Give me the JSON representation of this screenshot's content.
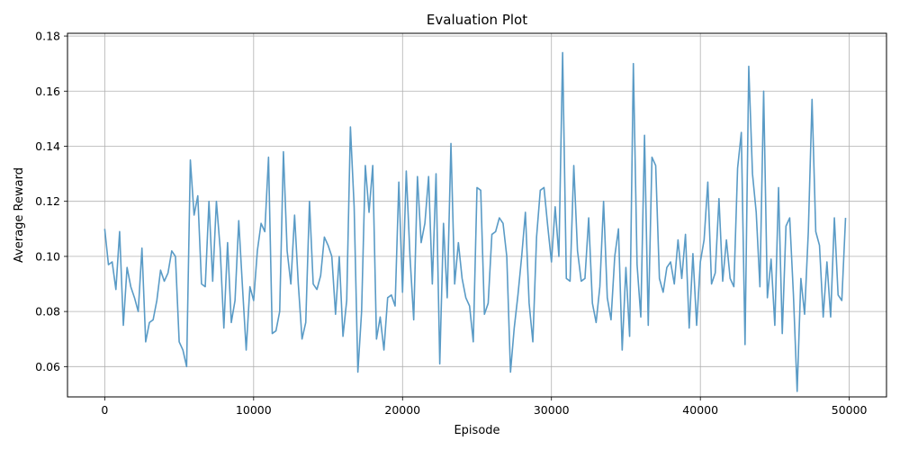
{
  "chart_data": {
    "type": "line",
    "title": "Evaluation Plot",
    "xlabel": "Episode",
    "ylabel": "Average Reward",
    "xlim": [
      -2500,
      52500
    ],
    "ylim": [
      0.049,
      0.181
    ],
    "xticks": [
      0,
      10000,
      20000,
      30000,
      40000,
      50000
    ],
    "xtick_labels": [
      "0",
      "10000",
      "20000",
      "30000",
      "40000",
      "50000"
    ],
    "yticks": [
      0.06,
      0.08,
      0.1,
      0.12,
      0.14,
      0.16,
      0.18
    ],
    "ytick_labels": [
      "0.06",
      "0.08",
      "0.10",
      "0.12",
      "0.14",
      "0.16",
      "0.18"
    ],
    "grid": true,
    "line_color": "#5a9bc6",
    "series": [
      {
        "x_start": 0,
        "x_step": 250,
        "values": [
          0.11,
          0.097,
          0.098,
          0.088,
          0.109,
          0.075,
          0.096,
          0.089,
          0.085,
          0.08,
          0.103,
          0.069,
          0.076,
          0.077,
          0.084,
          0.095,
          0.091,
          0.094,
          0.102,
          0.1,
          0.069,
          0.066,
          0.06,
          0.135,
          0.115,
          0.122,
          0.09,
          0.089,
          0.12,
          0.091,
          0.12,
          0.103,
          0.074,
          0.105,
          0.076,
          0.084,
          0.113,
          0.089,
          0.066,
          0.089,
          0.084,
          0.102,
          0.112,
          0.109,
          0.136,
          0.072,
          0.073,
          0.08,
          0.138,
          0.102,
          0.09,
          0.115,
          0.09,
          0.07,
          0.076,
          0.12,
          0.09,
          0.088,
          0.093,
          0.107,
          0.104,
          0.1,
          0.079,
          0.1,
          0.071,
          0.084,
          0.147,
          0.118,
          0.058,
          0.08,
          0.133,
          0.116,
          0.133,
          0.07,
          0.078,
          0.066,
          0.085,
          0.086,
          0.082,
          0.127,
          0.087,
          0.131,
          0.1,
          0.077,
          0.129,
          0.105,
          0.112,
          0.129,
          0.09,
          0.13,
          0.061,
          0.112,
          0.085,
          0.141,
          0.09,
          0.105,
          0.092,
          0.085,
          0.082,
          0.069,
          0.125,
          0.124,
          0.079,
          0.083,
          0.108,
          0.109,
          0.114,
          0.112,
          0.1,
          0.058,
          0.074,
          0.086,
          0.1,
          0.116,
          0.083,
          0.069,
          0.107,
          0.124,
          0.125,
          0.111,
          0.098,
          0.118,
          0.1,
          0.174,
          0.092,
          0.091,
          0.133,
          0.102,
          0.091,
          0.092,
          0.114,
          0.083,
          0.076,
          0.089,
          0.12,
          0.085,
          0.077,
          0.1,
          0.11,
          0.066,
          0.096,
          0.071,
          0.17,
          0.097,
          0.078,
          0.144,
          0.075,
          0.136,
          0.133,
          0.092,
          0.087,
          0.096,
          0.098,
          0.09,
          0.106,
          0.092,
          0.108,
          0.074,
          0.101,
          0.075,
          0.098,
          0.106,
          0.127,
          0.09,
          0.094,
          0.121,
          0.091,
          0.106,
          0.092,
          0.089,
          0.132,
          0.145,
          0.068,
          0.169,
          0.13,
          0.116,
          0.089,
          0.16,
          0.085,
          0.099,
          0.075,
          0.125,
          0.072,
          0.111,
          0.114,
          0.086,
          0.051,
          0.092,
          0.079,
          0.109,
          0.157,
          0.109,
          0.104,
          0.078,
          0.098,
          0.078,
          0.114,
          0.086,
          0.084,
          0.114
        ]
      }
    ]
  }
}
